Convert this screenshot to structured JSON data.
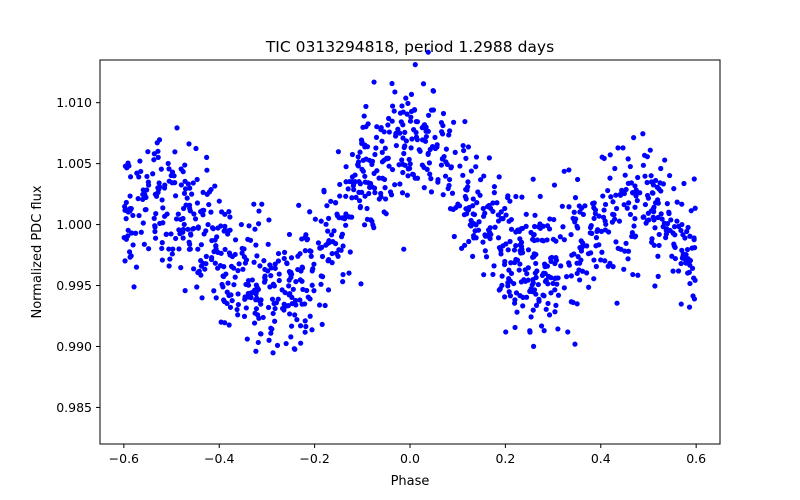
{
  "chart_data": {
    "type": "scatter",
    "title": "TIC 0313294818, period 1.2988 days",
    "xlabel": "Phase",
    "ylabel": "Normalized PDC flux",
    "xlim": [
      -0.65,
      0.65
    ],
    "ylim": [
      0.982,
      1.0135
    ],
    "xticks": [
      -0.6,
      -0.4,
      -0.2,
      0.0,
      0.2,
      0.4,
      0.6
    ],
    "xtick_labels": [
      "−0.6",
      "−0.4",
      "−0.2",
      "0.0",
      "0.2",
      "0.4",
      "0.6"
    ],
    "yticks": [
      0.985,
      0.99,
      0.995,
      1.0,
      1.005,
      1.01
    ],
    "ytick_labels": [
      "0.985",
      "0.990",
      "0.995",
      "1.000",
      "1.005",
      "1.010"
    ],
    "grid": false,
    "marker_color": "#0000ff",
    "series": [
      {
        "name": "flux",
        "note": "Phase-folded light curve, ~1200 points spanning phase -0.6 to 0.6",
        "x": [],
        "y": []
      }
    ]
  }
}
